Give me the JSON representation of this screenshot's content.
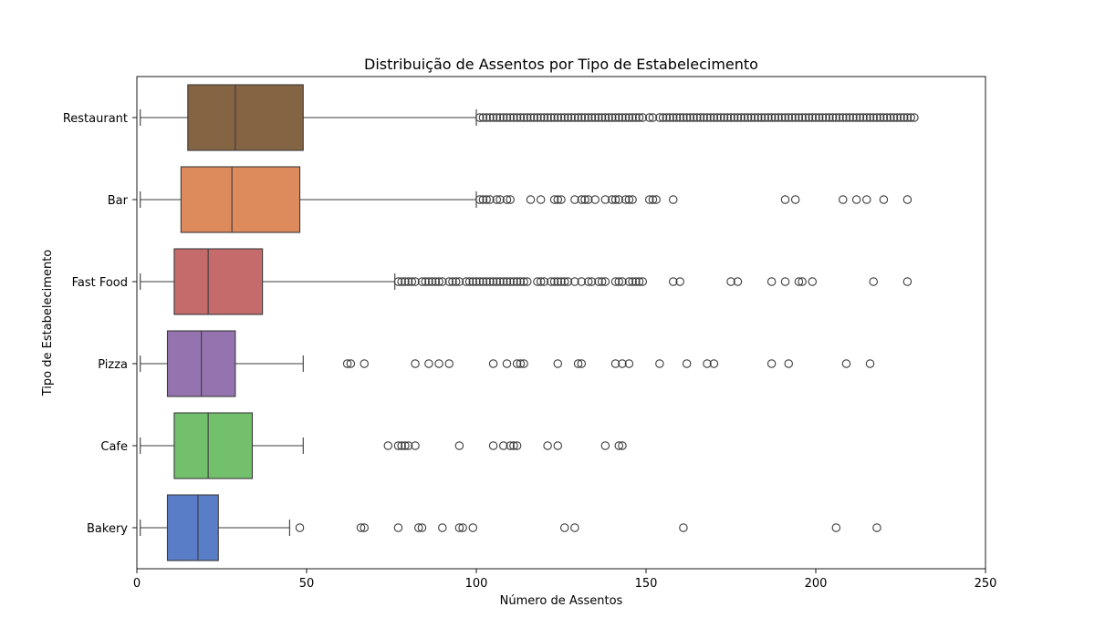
{
  "chart_data": {
    "type": "box",
    "orientation": "horizontal",
    "title": "Distribuição de Assentos por Tipo de Estabelecimento",
    "xlabel": "Número de Assentos",
    "ylabel": "Tipo de Estabelecimento",
    "xlim": [
      0,
      250
    ],
    "xticks": [
      0,
      50,
      100,
      150,
      200,
      250
    ],
    "grid": false,
    "legend": "none",
    "categories": [
      "Restaurant",
      "Bar",
      "Fast Food",
      "Pizza",
      "Cafe",
      "Bakery"
    ],
    "series": [
      {
        "category": "Restaurant",
        "color": "#856444",
        "whisker_low": 1,
        "q1": 15,
        "median": 29,
        "q3": 49,
        "whisker_high": 100,
        "outliers": [
          101,
          102,
          103,
          104,
          105,
          106,
          107,
          108,
          109,
          110,
          111,
          112,
          113,
          114,
          115,
          116,
          117,
          118,
          119,
          120,
          121,
          122,
          123,
          124,
          125,
          126,
          127,
          128,
          129,
          130,
          131,
          132,
          133,
          134,
          135,
          136,
          137,
          138,
          139,
          140,
          141,
          142,
          143,
          144,
          145,
          146,
          147,
          148,
          149,
          151,
          152,
          154,
          155,
          156,
          157,
          158,
          159,
          160,
          161,
          162,
          163,
          164,
          165,
          166,
          167,
          168,
          169,
          170,
          171,
          172,
          173,
          174,
          175,
          176,
          177,
          178,
          179,
          180,
          181,
          182,
          183,
          184,
          185,
          186,
          187,
          188,
          189,
          190,
          191,
          192,
          193,
          194,
          195,
          196,
          197,
          198,
          199,
          200,
          201,
          202,
          203,
          204,
          205,
          206,
          207,
          208,
          209,
          210,
          211,
          212,
          213,
          214,
          215,
          216,
          217,
          218,
          219,
          220,
          221,
          222,
          223,
          224,
          225,
          226,
          227,
          228,
          229
        ]
      },
      {
        "category": "Bar",
        "color": "#dd8a5c",
        "whisker_low": 1,
        "q1": 13,
        "median": 28,
        "q3": 48,
        "whisker_high": 100,
        "outliers": [
          101,
          102,
          103,
          104,
          106,
          107,
          109,
          110,
          116,
          119,
          123,
          124,
          125,
          129,
          131,
          132,
          133,
          135,
          138,
          140,
          141,
          142,
          144,
          145,
          146,
          151,
          152,
          153,
          158,
          191,
          194,
          208,
          212,
          215,
          220,
          227
        ]
      },
      {
        "category": "Fast Food",
        "color": "#c66b6b",
        "whisker_low": 1,
        "q1": 11,
        "median": 21,
        "q3": 37,
        "whisker_high": 76,
        "outliers": [
          77,
          78,
          79,
          80,
          81,
          82,
          84,
          85,
          86,
          87,
          88,
          89,
          90,
          92,
          93,
          94,
          95,
          97,
          98,
          99,
          100,
          101,
          102,
          103,
          104,
          105,
          106,
          107,
          108,
          109,
          110,
          111,
          112,
          113,
          114,
          115,
          118,
          119,
          120,
          122,
          123,
          124,
          125,
          126,
          127,
          129,
          131,
          133,
          134,
          136,
          137,
          138,
          141,
          142,
          143,
          145,
          146,
          147,
          148,
          149,
          158,
          160,
          175,
          177,
          187,
          191,
          195,
          196,
          199,
          217,
          227
        ]
      },
      {
        "category": "Pizza",
        "color": "#9473af",
        "whisker_low": 1,
        "q1": 9,
        "median": 19,
        "q3": 29,
        "whisker_high": 49,
        "outliers": [
          62,
          63,
          67,
          82,
          86,
          89,
          92,
          105,
          109,
          112,
          113,
          114,
          124,
          130,
          131,
          141,
          143,
          145,
          154,
          162,
          168,
          170,
          187,
          192,
          209,
          216
        ]
      },
      {
        "category": "Cafe",
        "color": "#72c06c",
        "whisker_low": 1,
        "q1": 11,
        "median": 21,
        "q3": 34,
        "whisker_high": 49,
        "outliers": [
          74,
          77,
          78,
          79,
          80,
          82,
          95,
          105,
          108,
          110,
          111,
          112,
          121,
          124,
          138,
          142,
          143
        ]
      },
      {
        "category": "Bakery",
        "color": "#5a7dc7",
        "whisker_low": 1,
        "q1": 9,
        "median": 18,
        "q3": 24,
        "whisker_high": 45,
        "outliers": [
          48,
          66,
          67,
          77,
          83,
          84,
          90,
          95,
          96,
          99,
          126,
          129,
          161,
          206,
          218
        ]
      }
    ]
  }
}
